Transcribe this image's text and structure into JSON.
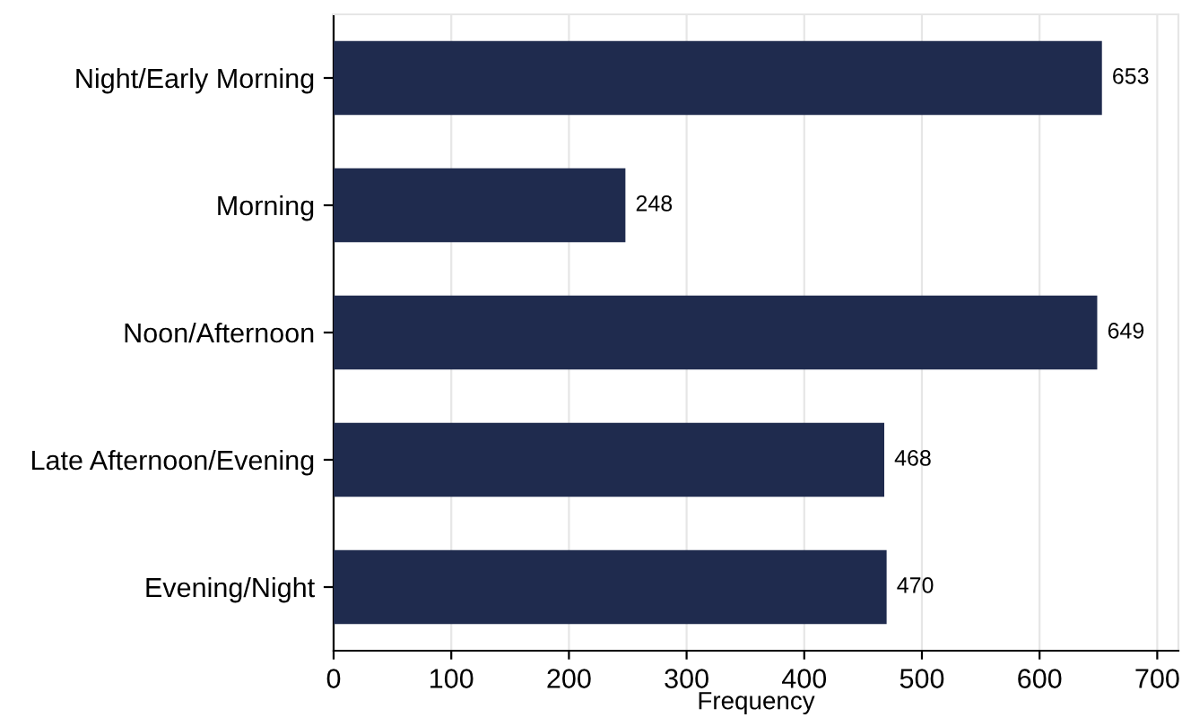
{
  "chart_data": {
    "type": "bar",
    "orientation": "horizontal",
    "xlabel": "Frequency",
    "categories": [
      "Night/Early Morning",
      "Morning",
      "Noon/Afternoon",
      "Late Afternoon/Evening",
      "Evening/Night"
    ],
    "values": [
      653,
      248,
      649,
      468,
      470
    ],
    "color": "#1f2b4e",
    "xlim": [
      0,
      718
    ],
    "xticks": [
      0,
      100,
      200,
      300,
      400,
      500,
      600,
      700
    ],
    "grid": "x",
    "data_labels": true
  }
}
